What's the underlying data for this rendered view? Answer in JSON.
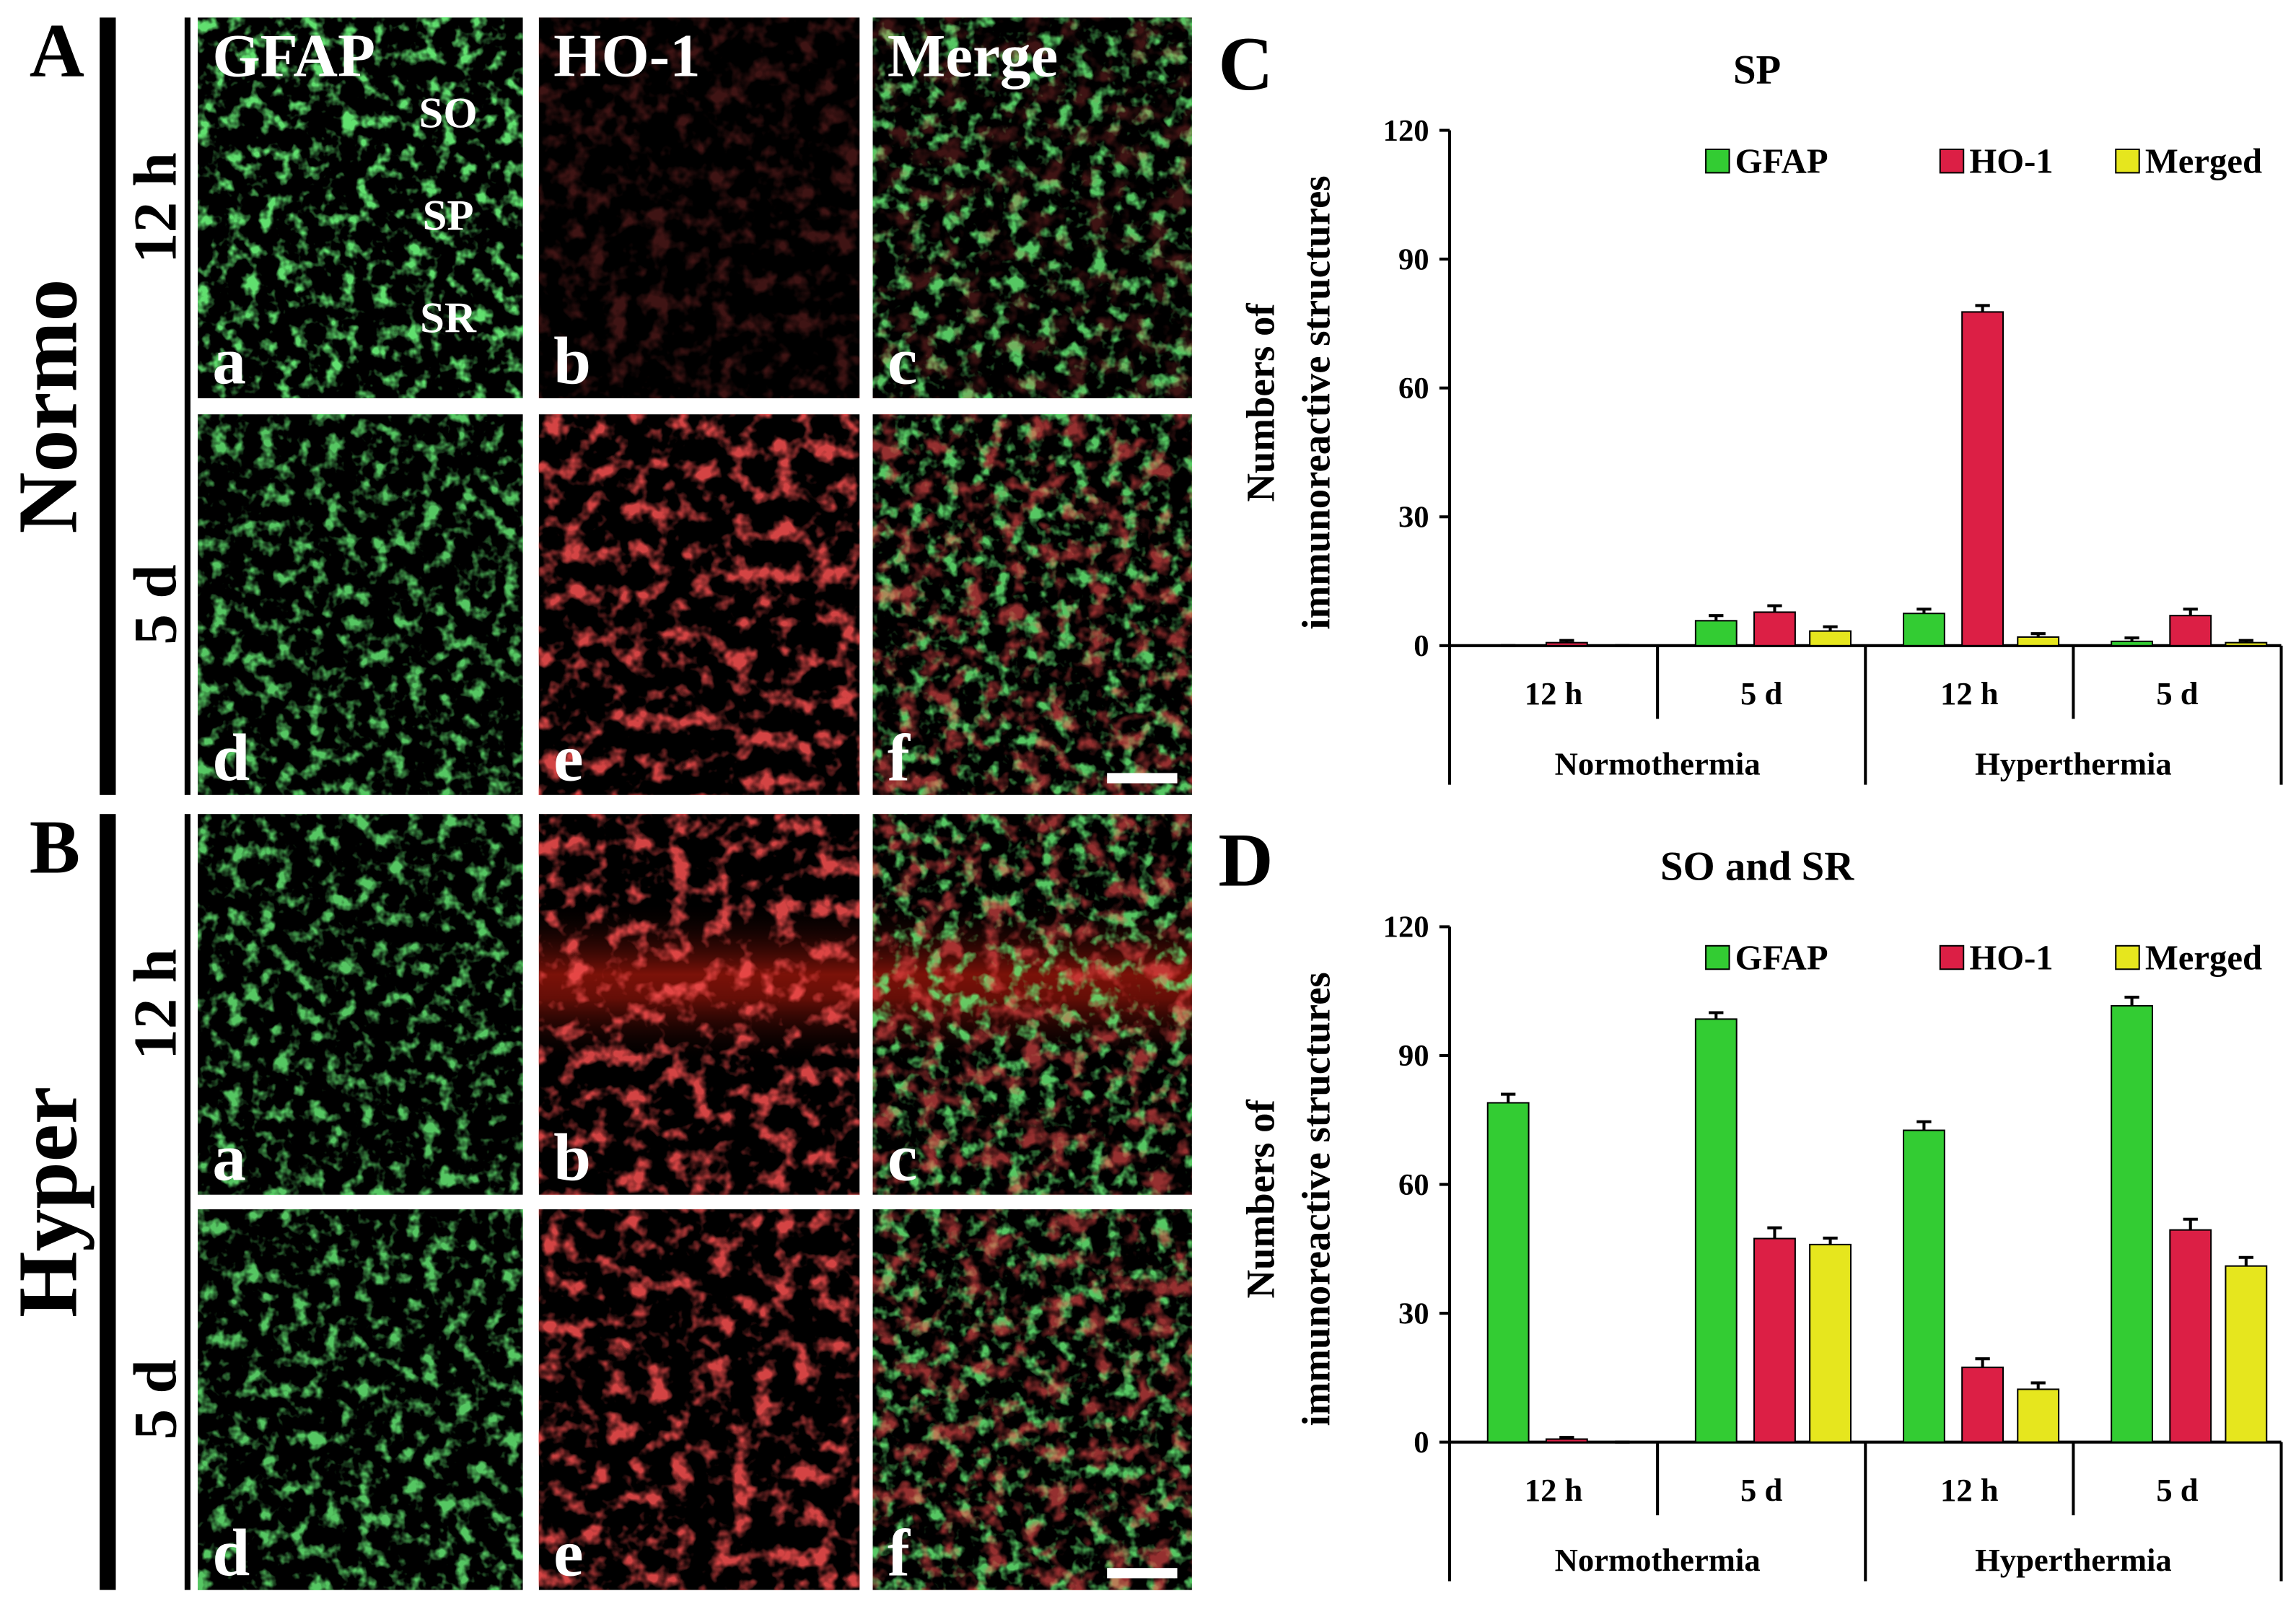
{
  "figure": {
    "panels": [
      "A",
      "B",
      "C",
      "D"
    ],
    "groups": [
      {
        "label": "Normo",
        "rows": [
          "12 h",
          "5 d"
        ]
      },
      {
        "label": "Hyper",
        "rows": [
          "12 h",
          "5 d"
        ]
      }
    ],
    "columns": [
      "GFAP",
      "HO-1",
      "Merge"
    ],
    "layers": [
      "SO",
      "SP",
      "SR"
    ],
    "subpanels": [
      "a",
      "b",
      "c",
      "d",
      "e",
      "f"
    ]
  },
  "chart_data": [
    {
      "type": "bar",
      "title": "SP",
      "ylabel": [
        "Numbers of",
        "immunoreactive structures"
      ],
      "categories": [
        "12 h",
        "5 d",
        "12 h",
        "5 d"
      ],
      "groups": [
        "Normothermia",
        "Hyperthermia"
      ],
      "series": [
        {
          "name": "GFAP",
          "color": "#33cc33",
          "values": [
            0,
            5.8,
            7.5,
            1
          ],
          "errors": [
            0,
            1.2,
            1,
            0.8
          ]
        },
        {
          "name": "HO-1",
          "color": "#dc1f45",
          "values": [
            0.7,
            7.8,
            77.7,
            7
          ],
          "errors": [
            0.5,
            1.5,
            1.5,
            1.5
          ]
        },
        {
          "name": "Merged",
          "color": "#e6e61e",
          "values": [
            0,
            3.4,
            2,
            0.7
          ],
          "errors": [
            0,
            1,
            0.8,
            0.5
          ]
        }
      ],
      "ylim": [
        0,
        120
      ],
      "yticks": [
        0,
        30,
        60,
        90,
        120
      ],
      "legend": "upper right"
    },
    {
      "type": "bar",
      "title": "SO and SR",
      "ylabel": [
        "Numbers of",
        "immunoreactive structures"
      ],
      "categories": [
        "12 h",
        "5 d",
        "12 h",
        "5 d"
      ],
      "groups": [
        "Normothermia",
        "Hyperthermia"
      ],
      "series": [
        {
          "name": "GFAP",
          "color": "#33cc33",
          "values": [
            79,
            98.5,
            72.6,
            101.6
          ],
          "errors": [
            2,
            1.5,
            2,
            2
          ]
        },
        {
          "name": "HO-1",
          "color": "#dc1f45",
          "values": [
            0.7,
            47.4,
            17.4,
            49.4
          ],
          "errors": [
            0.4,
            2.5,
            2,
            2.5
          ]
        },
        {
          "name": "Merged",
          "color": "#e6e61e",
          "values": [
            0,
            46,
            12.3,
            41
          ],
          "errors": [
            0,
            1.5,
            1.5,
            2
          ]
        }
      ],
      "ylim": [
        0,
        120
      ],
      "yticks": [
        0,
        30,
        60,
        90,
        120
      ],
      "legend": "upper right"
    }
  ]
}
